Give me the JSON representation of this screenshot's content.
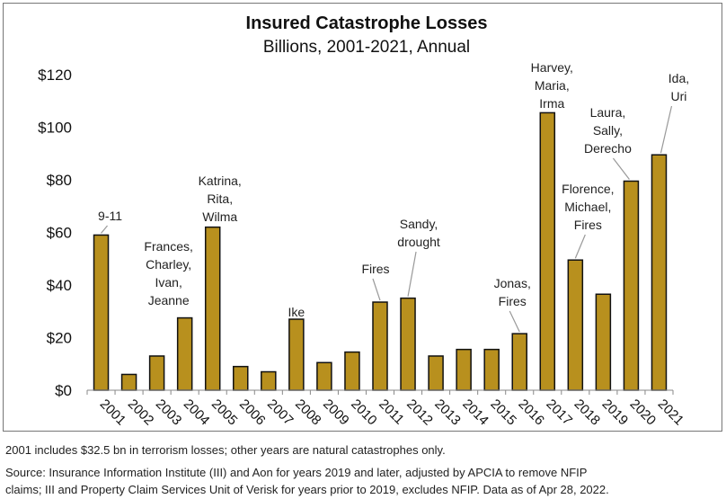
{
  "chart_data": {
    "type": "bar",
    "title": "Insured Catastrophe Losses",
    "subtitle": "Billions, 2001-2021, Annual",
    "categories": [
      "2001",
      "2002",
      "2003",
      "2004",
      "2005",
      "2006",
      "2007",
      "2008",
      "2009",
      "2010",
      "2011",
      "2012",
      "2013",
      "2014",
      "2015",
      "2016",
      "2017",
      "2018",
      "2019",
      "2020",
      "2021"
    ],
    "values": [
      59,
      6,
      13,
      27.5,
      62,
      9,
      7,
      27,
      10.5,
      14.5,
      33.5,
      35,
      13,
      15.5,
      15.5,
      21.5,
      105.5,
      49.5,
      36.5,
      79.5,
      89.5
    ],
    "ylim": [
      0,
      120
    ],
    "yticks": [
      "$0",
      "$20",
      "$40",
      "$60",
      "$80",
      "$100",
      "$120"
    ],
    "bar_color": "#B8901E",
    "grid": false,
    "annotations": [
      {
        "year": "2001",
        "lines": [
          "9-11"
        ]
      },
      {
        "year": "2004",
        "lines": [
          "Frances,",
          "Charley,",
          "Ivan,",
          "Jeanne"
        ]
      },
      {
        "year": "2005",
        "lines": [
          "Katrina,",
          "Rita,",
          "Wilma"
        ]
      },
      {
        "year": "2008",
        "lines": [
          "Ike"
        ]
      },
      {
        "year": "2011",
        "lines": [
          "Fires"
        ]
      },
      {
        "year": "2012",
        "lines": [
          "Sandy,",
          "drought"
        ]
      },
      {
        "year": "2016",
        "lines": [
          "Jonas,",
          "Fires"
        ]
      },
      {
        "year": "2017",
        "lines": [
          "Harvey,",
          "Maria,",
          "Irma"
        ]
      },
      {
        "year": "2018",
        "lines": [
          "Florence,",
          "Michael,",
          "Fires"
        ]
      },
      {
        "year": "2020",
        "lines": [
          "Laura,",
          "Sally,",
          "Derecho"
        ]
      },
      {
        "year": "2021",
        "lines": [
          "Ida,",
          "Uri"
        ]
      }
    ]
  },
  "footnotes": {
    "note": "2001 includes $32.5 bn in terrorism losses; other years are natural catastrophes only.",
    "source_line1": "Source: Insurance Information Institute (III) and Aon for years 2019 and later, adjusted by APCIA to remove NFIP",
    "source_line2": "claims; III and Property Claim Services Unit of Verisk for years prior to 2019, excludes NFIP. Data as of Apr 28, 2022."
  }
}
